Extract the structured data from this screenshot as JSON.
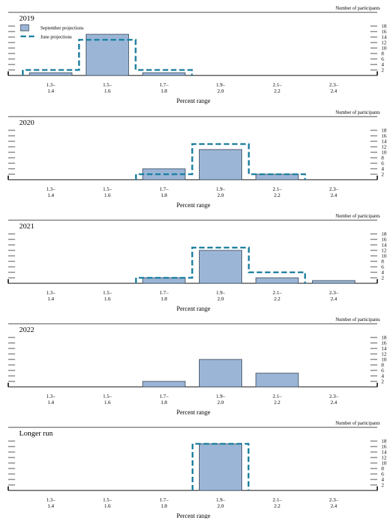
{
  "legend": {
    "sep_label": "September projections",
    "jun_label": "June projections"
  },
  "colors": {
    "bar_fill": "#9bb5d6",
    "bar_stroke": "#2b3a4a",
    "june_line": "#1b7f9e",
    "axis": "#000000"
  },
  "chart_data": [
    {
      "type": "bar",
      "title": "2019",
      "categories": [
        "1.3–\n1.4",
        "1.5–\n1.6",
        "1.7–\n1.8",
        "1.9–\n2.0",
        "2.1–\n2.2",
        "2.3–\n2.4"
      ],
      "series": [
        {
          "name": "September projections",
          "style": "bar",
          "values": [
            1,
            15,
            1,
            0,
            0,
            0
          ]
        },
        {
          "name": "June projections",
          "style": "dashed-outline",
          "values": [
            2,
            13,
            2,
            0,
            0,
            0
          ]
        }
      ],
      "xlabel": "Percent range",
      "ylabel": "Number of participants",
      "ylim": [
        0,
        18
      ],
      "yticks": [
        2,
        4,
        6,
        8,
        10,
        12,
        14,
        16,
        18
      ],
      "legend": "top-left"
    },
    {
      "type": "bar",
      "title": "2020",
      "categories": [
        "1.3–\n1.4",
        "1.5–\n1.6",
        "1.7–\n1.8",
        "1.9–\n2.0",
        "2.1–\n2.2",
        "2.3–\n2.4"
      ],
      "series": [
        {
          "name": "September projections",
          "style": "bar",
          "values": [
            0,
            0,
            4,
            11,
            2,
            0
          ]
        },
        {
          "name": "June projections",
          "style": "dashed-outline",
          "values": [
            0,
            0,
            2,
            13,
            2,
            0
          ]
        }
      ],
      "xlabel": "Percent range",
      "ylabel": "Number of participants",
      "ylim": [
        0,
        18
      ],
      "yticks": [
        2,
        4,
        6,
        8,
        10,
        12,
        14,
        16,
        18
      ]
    },
    {
      "type": "bar",
      "title": "2021",
      "categories": [
        "1.3–\n1.4",
        "1.5–\n1.6",
        "1.7–\n1.8",
        "1.9–\n2.0",
        "2.1–\n2.2",
        "2.3–\n2.4"
      ],
      "series": [
        {
          "name": "September projections",
          "style": "bar",
          "values": [
            0,
            0,
            2,
            12,
            2,
            1
          ]
        },
        {
          "name": "June projections",
          "style": "dashed-outline",
          "values": [
            0,
            0,
            2,
            13,
            4,
            0
          ]
        }
      ],
      "xlabel": "Percent range",
      "ylabel": "Number of participants",
      "ylim": [
        0,
        18
      ],
      "yticks": [
        2,
        4,
        6,
        8,
        10,
        12,
        14,
        16,
        18
      ]
    },
    {
      "type": "bar",
      "title": "2022",
      "categories": [
        "1.3–\n1.4",
        "1.5–\n1.6",
        "1.7–\n1.8",
        "1.9–\n2.0",
        "2.1–\n2.2",
        "2.3–\n2.4"
      ],
      "series": [
        {
          "name": "September projections",
          "style": "bar",
          "values": [
            0,
            0,
            2,
            10,
            5,
            0
          ]
        }
      ],
      "xlabel": "Percent range",
      "ylabel": "Number of participants",
      "ylim": [
        0,
        18
      ],
      "yticks": [
        2,
        4,
        6,
        8,
        10,
        12,
        14,
        16,
        18
      ]
    },
    {
      "type": "bar",
      "title": "Longer run",
      "categories": [
        "1.3–\n1.4",
        "1.5–\n1.6",
        "1.7–\n1.8",
        "1.9–\n2.0",
        "2.1–\n2.2",
        "2.3–\n2.4"
      ],
      "series": [
        {
          "name": "September projections",
          "style": "bar",
          "values": [
            0,
            0,
            0,
            17,
            0,
            0
          ]
        },
        {
          "name": "June projections",
          "style": "dashed-outline",
          "values": [
            0,
            0,
            0,
            17,
            0,
            0
          ]
        }
      ],
      "xlabel": "Percent range",
      "ylabel": "Number of participants",
      "ylim": [
        0,
        18
      ],
      "yticks": [
        2,
        4,
        6,
        8,
        10,
        12,
        14,
        16,
        18
      ]
    }
  ]
}
